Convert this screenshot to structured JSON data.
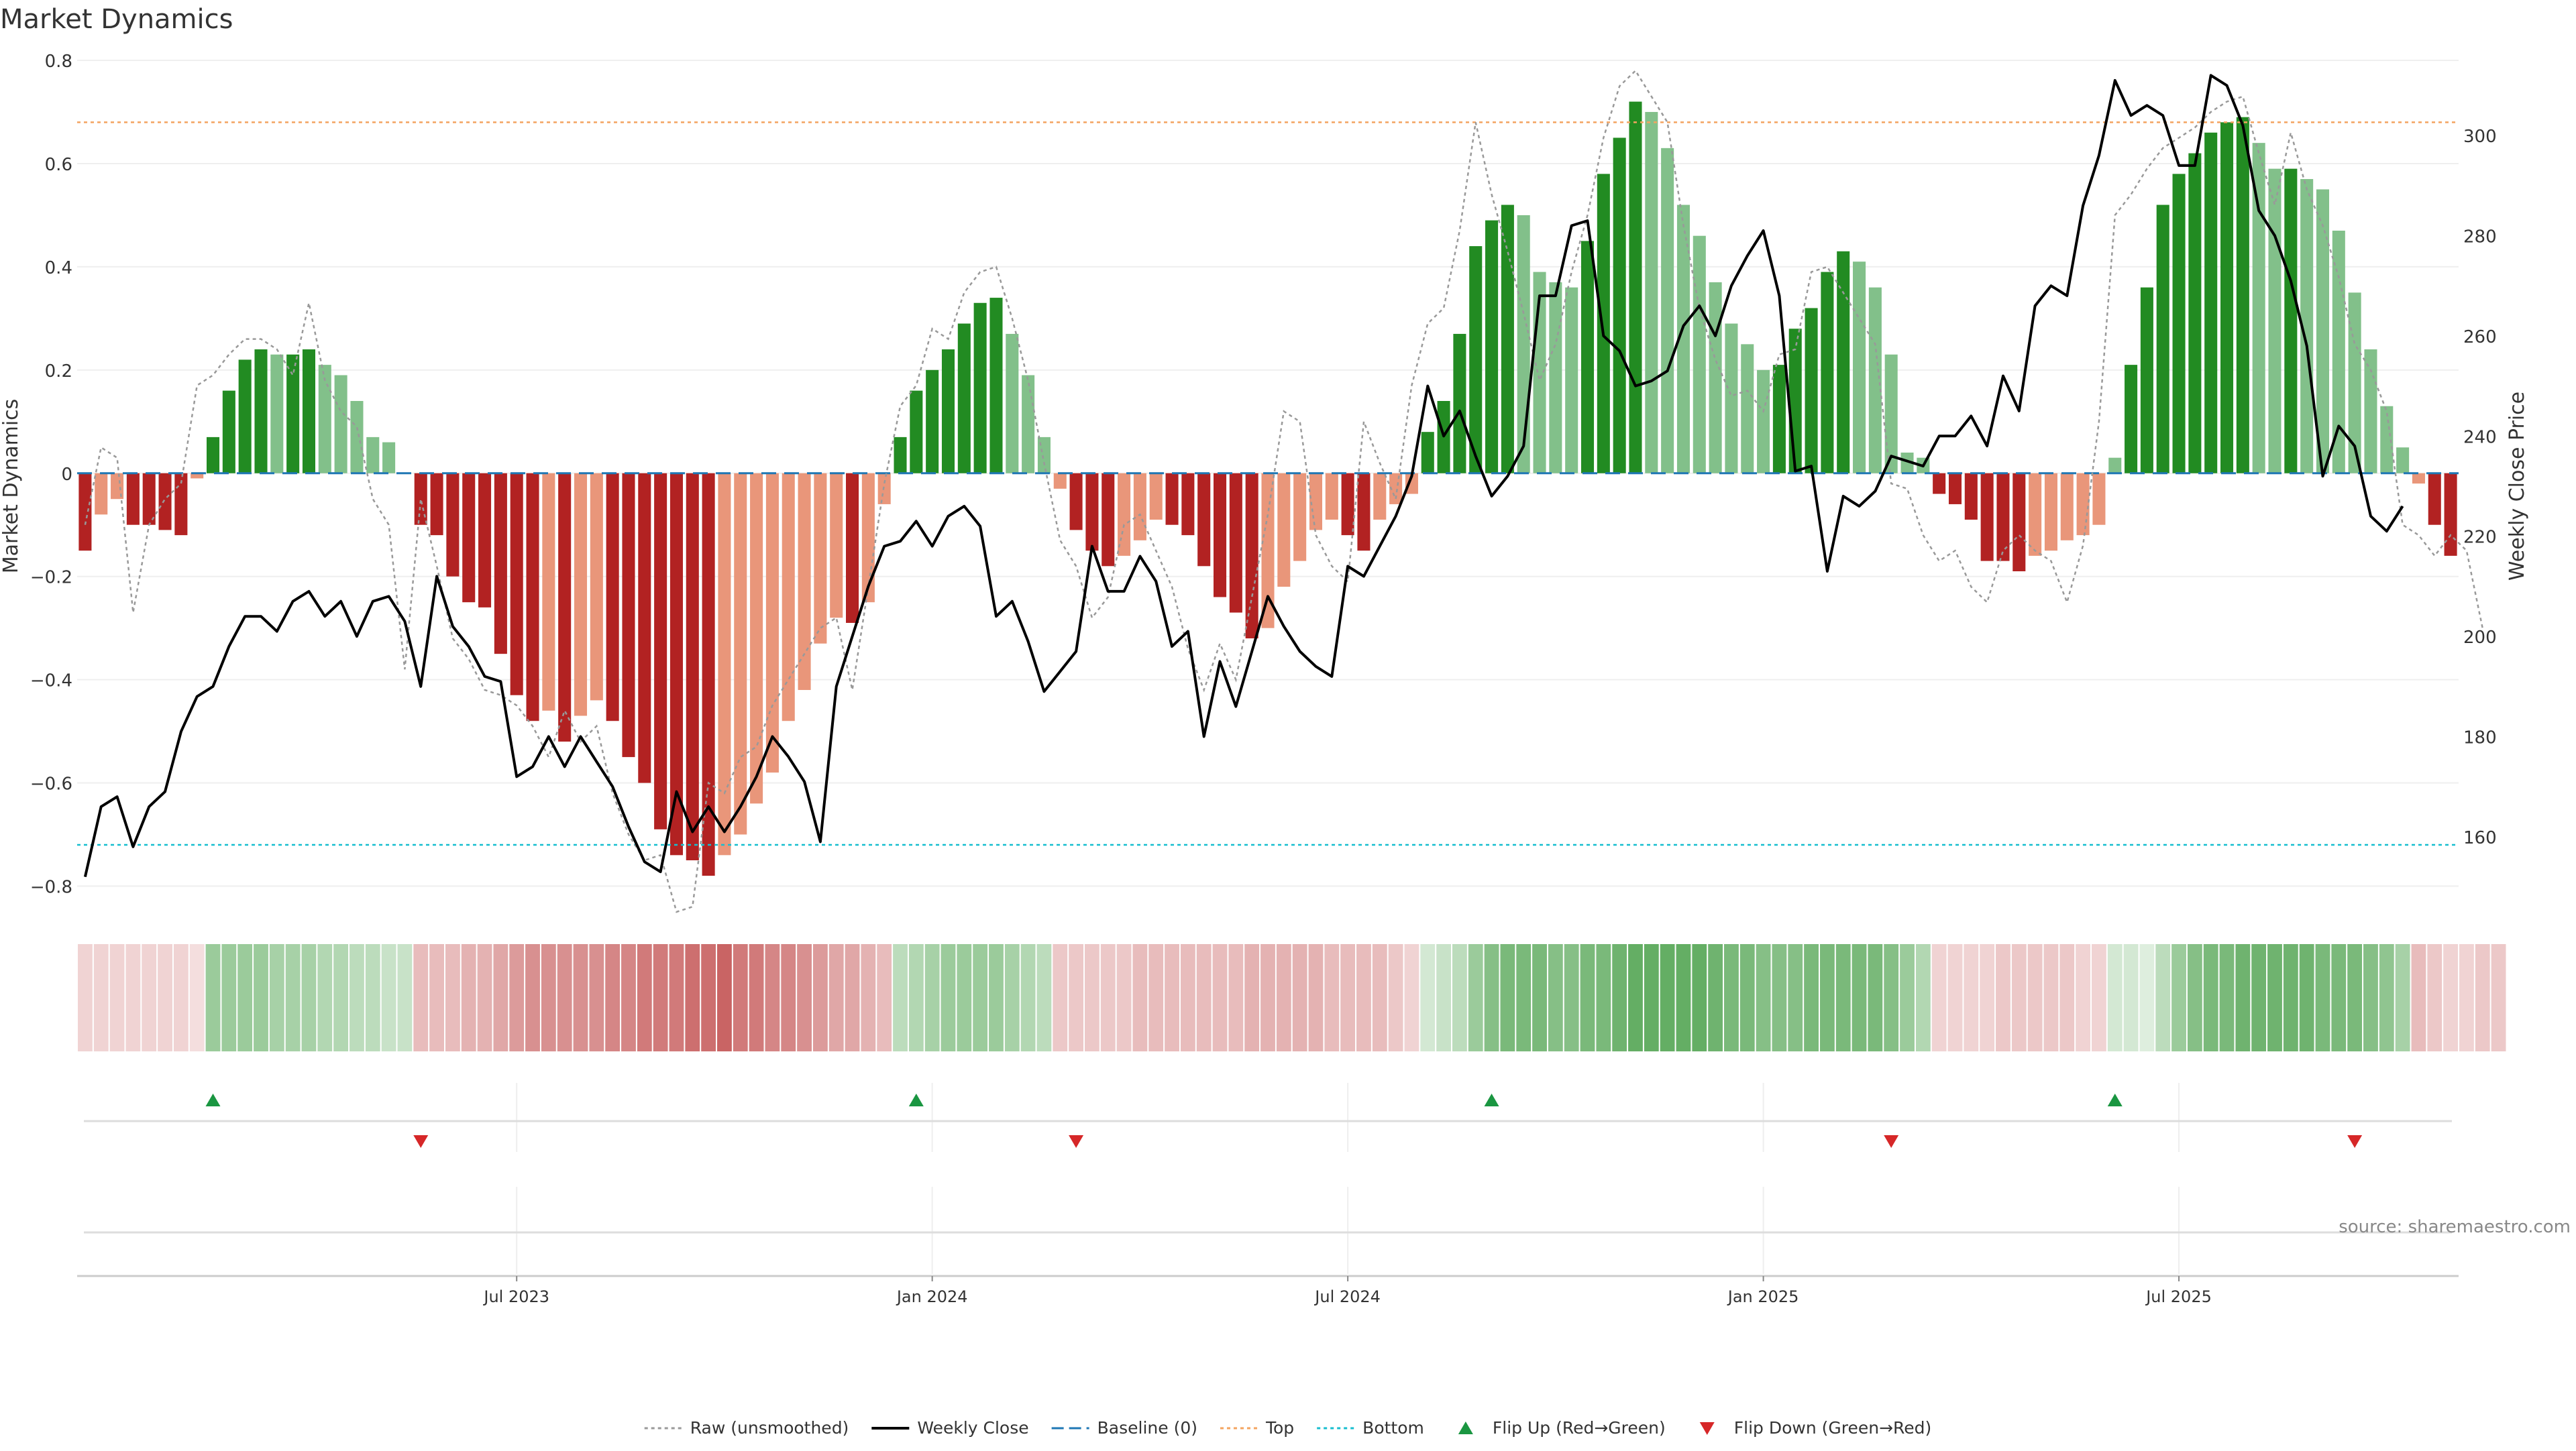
{
  "title": "Market Dynamics",
  "source": "source: sharemaestro.com",
  "colors": {
    "strong_green": "#228b22",
    "light_green": "#82c08a",
    "strong_red": "#b22222",
    "light_red": "#e9967a",
    "close_line": "#000000",
    "raw_line": "#999999",
    "baseline": "#1f77b4",
    "top": "#f4a460",
    "bottom": "#17becf",
    "flip_up": "#1a9641",
    "flip_down": "#d62728"
  },
  "chart_data": {
    "type": "bar",
    "ylabel": "Market Dynamics",
    "ylabel_right": "Weekly Close Price",
    "ylim": [
      -0.85,
      0.8
    ],
    "ylim_right": [
      145,
      315
    ],
    "yticks": [
      0.8,
      0.6,
      0.4,
      0.2,
      0,
      -0.2,
      -0.4,
      -0.6,
      -0.8
    ],
    "ytick_labels": [
      "0.8",
      "0.6",
      "0.4",
      "0.2",
      "0",
      "−0.2",
      "−0.4",
      "−0.6",
      "−0.8"
    ],
    "yticks_right": [
      300,
      280,
      260,
      240,
      220,
      200,
      180,
      160
    ],
    "xticks": [
      {
        "week": 27,
        "label": "Jul 2023"
      },
      {
        "week": 53,
        "label": "Jan 2024"
      },
      {
        "week": 79,
        "label": "Jul 2024"
      },
      {
        "week": 105,
        "label": "Jan 2025"
      },
      {
        "week": 131,
        "label": "Jul 2025"
      }
    ],
    "top_level": 0.68,
    "bottom_level": -0.72,
    "baseline_level": 0,
    "momentum": [
      -0.15,
      -0.08,
      -0.05,
      -0.1,
      -0.1,
      -0.11,
      -0.12,
      -0.01,
      0.07,
      0.16,
      0.22,
      0.24,
      0.23,
      0.23,
      0.24,
      0.21,
      0.19,
      0.14,
      0.07,
      0.06,
      0,
      -0.1,
      -0.12,
      -0.2,
      -0.25,
      -0.26,
      -0.35,
      -0.43,
      -0.48,
      -0.46,
      -0.52,
      -0.47,
      -0.44,
      -0.48,
      -0.55,
      -0.6,
      -0.69,
      -0.74,
      -0.75,
      -0.78,
      -0.74,
      -0.7,
      -0.64,
      -0.58,
      -0.48,
      -0.42,
      -0.33,
      -0.28,
      -0.29,
      -0.25,
      -0.06,
      0.07,
      0.16,
      0.2,
      0.24,
      0.29,
      0.33,
      0.34,
      0.27,
      0.19,
      0.07,
      -0.03,
      -0.11,
      -0.15,
      -0.18,
      -0.16,
      -0.13,
      -0.09,
      -0.1,
      -0.12,
      -0.18,
      -0.24,
      -0.27,
      -0.32,
      -0.3,
      -0.22,
      -0.17,
      -0.11,
      -0.09,
      -0.12,
      -0.15,
      -0.09,
      -0.06,
      -0.04,
      0.08,
      0.14,
      0.27,
      0.44,
      0.49,
      0.52,
      0.5,
      0.39,
      0.37,
      0.36,
      0.45,
      0.58,
      0.65,
      0.72,
      0.7,
      0.63,
      0.52,
      0.46,
      0.37,
      0.29,
      0.25,
      0.2,
      0.21,
      0.28,
      0.32,
      0.39,
      0.43,
      0.41,
      0.36,
      0.23,
      0.04,
      0.03,
      -0.04,
      -0.06,
      -0.09,
      -0.17,
      -0.17,
      -0.19,
      -0.16,
      -0.15,
      -0.13,
      -0.12,
      -0.1,
      0.03,
      0.21,
      0.36,
      0.52,
      0.58,
      0.62,
      0.66,
      0.68,
      0.69,
      0.64,
      0.59,
      0.59,
      0.57,
      0.55,
      0.47,
      0.35,
      0.24,
      0.13,
      0.05,
      -0.02,
      -0.1,
      -0.16
    ],
    "raw": [
      -0.1,
      0.05,
      0.03,
      -0.27,
      -0.1,
      -0.05,
      -0.02,
      0.17,
      0.19,
      0.23,
      0.26,
      0.26,
      0.24,
      0.19,
      0.33,
      0.18,
      0.12,
      0.09,
      -0.05,
      -0.1,
      -0.38,
      -0.05,
      -0.18,
      -0.32,
      -0.36,
      -0.42,
      -0.43,
      -0.45,
      -0.49,
      -0.55,
      -0.46,
      -0.52,
      -0.49,
      -0.62,
      -0.7,
      -0.75,
      -0.74,
      -0.85,
      -0.84,
      -0.6,
      -0.62,
      -0.55,
      -0.53,
      -0.45,
      -0.4,
      -0.35,
      -0.3,
      -0.28,
      -0.42,
      -0.22,
      -0.02,
      0.13,
      0.17,
      0.28,
      0.26,
      0.35,
      0.39,
      0.4,
      0.3,
      0.18,
      0.02,
      -0.13,
      -0.18,
      -0.28,
      -0.24,
      -0.1,
      -0.08,
      -0.15,
      -0.22,
      -0.34,
      -0.42,
      -0.33,
      -0.4,
      -0.24,
      -0.08,
      0.12,
      0.1,
      -0.12,
      -0.18,
      -0.21,
      0.1,
      0.02,
      -0.05,
      0.17,
      0.29,
      0.32,
      0.47,
      0.68,
      0.54,
      0.43,
      0.31,
      0.18,
      0.25,
      0.39,
      0.5,
      0.65,
      0.75,
      0.78,
      0.73,
      0.68,
      0.48,
      0.32,
      0.22,
      0.15,
      0.16,
      0.12,
      0.23,
      0.24,
      0.39,
      0.4,
      0.35,
      0.3,
      0.25,
      -0.02,
      -0.03,
      -0.12,
      -0.17,
      -0.15,
      -0.22,
      -0.25,
      -0.15,
      -0.12,
      -0.15,
      -0.17,
      -0.25,
      -0.14,
      0.1,
      0.5,
      0.54,
      0.59,
      0.63,
      0.65,
      0.67,
      0.7,
      0.72,
      0.73,
      0.62,
      0.52,
      0.66,
      0.55,
      0.48,
      0.38,
      0.25,
      0.2,
      0.12,
      -0.1,
      -0.12,
      -0.16,
      -0.12,
      -0.15,
      -0.3
    ],
    "close": [
      152,
      166,
      168,
      158,
      166,
      169,
      181,
      188,
      190,
      198,
      204,
      204,
      201,
      207,
      209,
      204,
      207,
      200,
      207,
      208,
      203,
      190,
      212,
      202,
      198,
      192,
      191,
      172,
      174,
      180,
      174,
      180,
      175,
      170,
      162,
      155,
      153,
      169,
      161,
      166,
      161,
      166,
      172,
      180,
      176,
      171,
      159,
      190,
      200,
      210,
      218,
      219,
      223,
      218,
      224,
      226,
      222,
      204,
      207,
      199,
      189,
      193,
      197,
      218,
      209,
      209,
      216,
      211,
      198,
      201,
      180,
      195,
      186,
      197,
      208,
      202,
      197,
      194,
      192,
      214,
      212,
      218,
      224,
      232,
      250,
      240,
      245,
      236,
      228,
      232,
      238,
      268,
      268,
      282,
      283,
      260,
      257,
      250,
      251,
      253,
      262,
      266,
      260,
      270,
      276,
      281,
      268,
      233,
      234,
      213,
      228,
      226,
      229,
      236,
      235,
      234,
      240,
      240,
      244,
      238,
      252,
      245,
      266,
      270,
      268,
      286,
      296,
      311,
      304,
      306,
      304,
      294,
      294,
      312,
      310,
      302,
      285,
      280,
      271,
      258,
      232,
      242,
      238,
      224,
      221,
      226
    ],
    "heat": [
      0.2,
      0.2,
      0.2,
      0.2,
      0.2,
      0.2,
      0.2,
      0.15,
      0.45,
      0.45,
      0.45,
      0.45,
      0.4,
      0.4,
      0.4,
      0.35,
      0.35,
      0.3,
      0.3,
      0.25,
      0.25,
      0.3,
      0.3,
      0.3,
      0.35,
      0.35,
      0.4,
      0.45,
      0.5,
      0.5,
      0.5,
      0.5,
      0.5,
      0.55,
      0.55,
      0.6,
      0.6,
      0.6,
      0.65,
      0.65,
      0.7,
      0.6,
      0.6,
      0.55,
      0.55,
      0.5,
      0.45,
      0.4,
      0.4,
      0.35,
      0.3,
      0.3,
      0.35,
      0.4,
      0.45,
      0.45,
      0.45,
      0.45,
      0.4,
      0.35,
      0.3,
      0.25,
      0.25,
      0.25,
      0.25,
      0.25,
      0.3,
      0.3,
      0.3,
      0.3,
      0.3,
      0.3,
      0.3,
      0.35,
      0.35,
      0.35,
      0.35,
      0.35,
      0.3,
      0.3,
      0.3,
      0.3,
      0.25,
      0.2,
      0.2,
      0.25,
      0.3,
      0.45,
      0.55,
      0.6,
      0.6,
      0.6,
      0.55,
      0.55,
      0.6,
      0.6,
      0.65,
      0.7,
      0.7,
      0.7,
      0.7,
      0.7,
      0.65,
      0.6,
      0.6,
      0.55,
      0.55,
      0.55,
      0.6,
      0.6,
      0.6,
      0.6,
      0.6,
      0.55,
      0.45,
      0.35,
      0.2,
      0.2,
      0.2,
      0.2,
      0.25,
      0.25,
      0.25,
      0.25,
      0.25,
      0.2,
      0.2,
      0.2,
      0.2,
      0.15,
      0.3,
      0.45,
      0.55,
      0.6,
      0.6,
      0.65,
      0.65,
      0.65,
      0.65,
      0.65,
      0.6,
      0.6,
      0.6,
      0.55,
      0.5,
      0.4,
      0.3,
      0.25,
      0.2,
      0.2,
      0.25,
      0.25
    ],
    "flips_up": [
      8,
      52,
      88,
      127
    ],
    "flips_down": [
      21,
      62,
      113,
      142
    ],
    "legend": [
      {
        "key": "raw",
        "label": "Raw (unsmoothed)",
        "style": "dotted"
      },
      {
        "key": "close",
        "label": "Weekly Close",
        "style": "solid"
      },
      {
        "key": "baseline",
        "label": "Baseline (0)",
        "style": "dashed"
      },
      {
        "key": "top",
        "label": "Top",
        "style": "dotted"
      },
      {
        "key": "bottom",
        "label": "Bottom",
        "style": "dotted"
      },
      {
        "key": "flip_up",
        "label": "Flip Up (Red→Green)",
        "style": "triangle-up"
      },
      {
        "key": "flip_down",
        "label": "Flip Down (Green→Red)",
        "style": "triangle-down"
      }
    ],
    "grid": true,
    "legend_position": "bottom-center"
  }
}
